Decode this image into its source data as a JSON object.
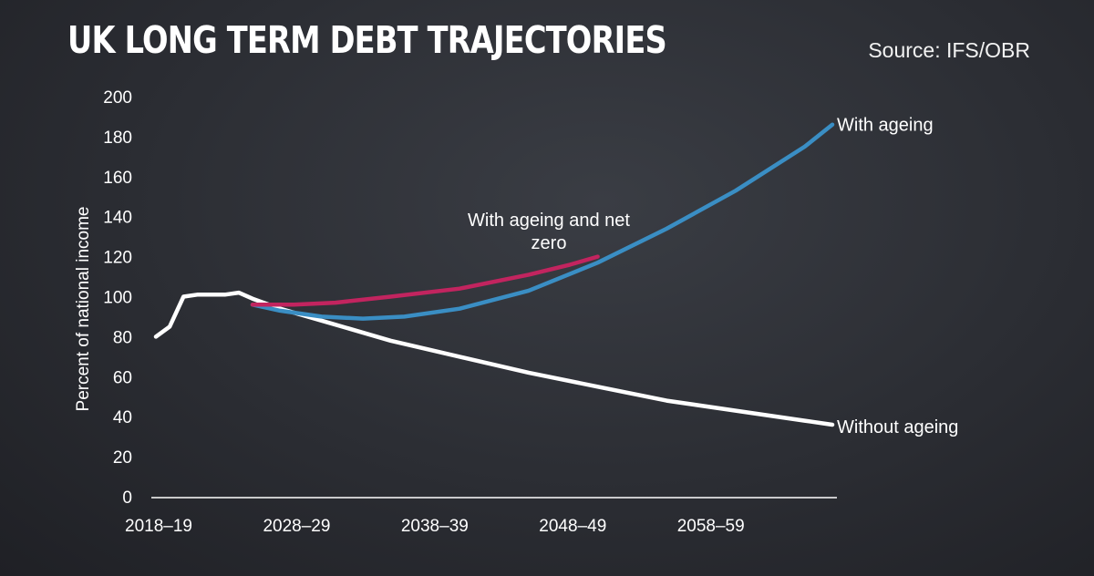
{
  "header": {
    "title": "UK LONG TERM DEBT TRAJECTORIES",
    "source": "Source: IFS/OBR"
  },
  "chart_data": {
    "type": "line",
    "ylabel": "Percent of national income",
    "ylim": [
      0,
      200
    ],
    "yticks": [
      0,
      20,
      40,
      60,
      80,
      100,
      120,
      140,
      160,
      180,
      200
    ],
    "xlim": [
      2018,
      2067
    ],
    "xticks": [
      {
        "value": 2018,
        "label": "2018–19"
      },
      {
        "value": 2028,
        "label": "2028–29"
      },
      {
        "value": 2038,
        "label": "2038–39"
      },
      {
        "value": 2048,
        "label": "2048–49"
      },
      {
        "value": 2058,
        "label": "2058–59"
      }
    ],
    "series": [
      {
        "name": "Without ageing",
        "color": "#ffffff",
        "x": [
          2018,
          2019,
          2020,
          2021,
          2022,
          2023,
          2024,
          2025,
          2027,
          2030,
          2035,
          2040,
          2045,
          2050,
          2055,
          2060,
          2065,
          2067
        ],
        "y": [
          80,
          85,
          100,
          101,
          101,
          101,
          102,
          99,
          94,
          88,
          78,
          70,
          62,
          55,
          48,
          43,
          38,
          36
        ]
      },
      {
        "name": "With ageing",
        "color": "#3a8ec4",
        "x": [
          2025,
          2027,
          2030,
          2033,
          2036,
          2040,
          2045,
          2050,
          2055,
          2060,
          2065,
          2067
        ],
        "y": [
          96,
          93,
          90,
          89,
          90,
          94,
          103,
          117,
          134,
          153,
          175,
          186
        ]
      },
      {
        "name": "With ageing and net zero",
        "color": "#c2245f",
        "x": [
          2025,
          2028,
          2031,
          2035,
          2040,
          2045,
          2048,
          2050
        ],
        "y": [
          96,
          96,
          97,
          100,
          104,
          111,
          116,
          120
        ]
      }
    ]
  }
}
